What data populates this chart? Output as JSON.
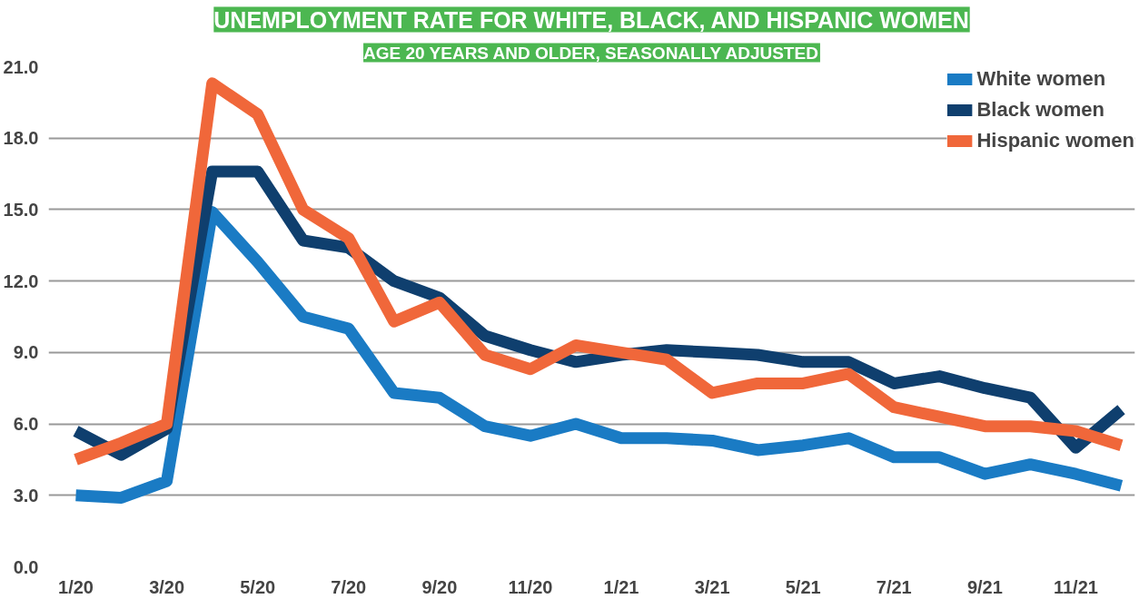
{
  "chart_data": {
    "type": "line",
    "title": "UNEMPLOYMENT RATE FOR WHITE, BLACK, AND HISPANIC WOMEN",
    "subtitle": "AGE 20 YEARS AND OLDER, SEASONALLY ADJUSTED",
    "categories": [
      "1/20",
      null,
      "3/20",
      null,
      "5/20",
      null,
      "7/20",
      null,
      "9/20",
      null,
      "11/20",
      null,
      "1/21",
      null,
      "3/21",
      null,
      "5/21",
      null,
      "7/21",
      null,
      "9/21",
      null,
      "11/21",
      null
    ],
    "series": [
      {
        "name": "White women",
        "color": "#1a7bc4",
        "values": [
          3.0,
          2.9,
          3.6,
          14.9,
          12.8,
          10.5,
          10.0,
          7.3,
          7.1,
          5.9,
          5.5,
          6.0,
          5.4,
          5.4,
          5.3,
          4.9,
          5.1,
          5.4,
          4.6,
          4.6,
          3.9,
          4.3,
          3.9,
          3.4
        ]
      },
      {
        "name": "Black women",
        "color": "#0f3f6e",
        "values": [
          5.7,
          4.7,
          5.8,
          16.6,
          16.6,
          13.7,
          13.4,
          12.0,
          11.3,
          9.7,
          9.1,
          8.6,
          8.9,
          9.1,
          9.0,
          8.9,
          8.6,
          8.6,
          7.7,
          8.0,
          7.5,
          7.1,
          5.0,
          6.6
        ]
      },
      {
        "name": "Hispanic women",
        "color": "#f0673a",
        "values": [
          4.5,
          5.2,
          6.0,
          20.3,
          19.0,
          15.0,
          13.8,
          10.3,
          11.1,
          8.9,
          8.3,
          9.3,
          9.0,
          8.7,
          7.3,
          7.7,
          7.7,
          8.1,
          6.7,
          6.3,
          5.9,
          5.9,
          5.7,
          5.1
        ]
      }
    ],
    "ylim": [
      0,
      21
    ],
    "yticks": [
      {
        "value": 0,
        "label": "0.0"
      },
      {
        "value": 3,
        "label": "3.0"
      },
      {
        "value": 6,
        "label": "6.0"
      },
      {
        "value": 9,
        "label": "9.0"
      },
      {
        "value": 12,
        "label": "12.0"
      },
      {
        "value": 15,
        "label": "15.0"
      },
      {
        "value": 18,
        "label": "18.0"
      },
      {
        "value": 21,
        "label": "21.0"
      }
    ],
    "grid": "y",
    "legend": "top right",
    "line_style": "solid"
  }
}
